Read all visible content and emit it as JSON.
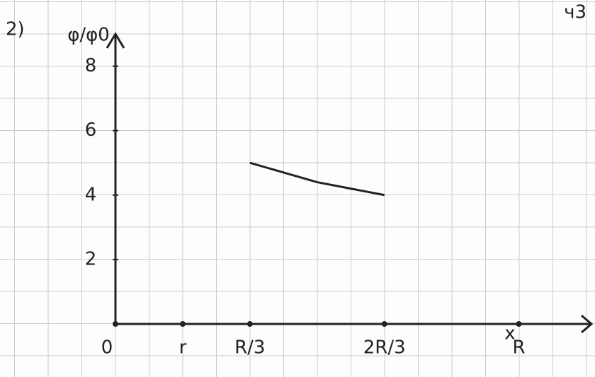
{
  "chart_data": {
    "type": "line",
    "title": "2)",
    "note": "ч3",
    "ylabel": "φ/φ0",
    "xlabel": "x",
    "x": [
      0.3333,
      0.5,
      0.6667
    ],
    "values": [
      5,
      4.4,
      4
    ],
    "color": "#222222",
    "xlim": [
      0,
      1.18
    ],
    "ylim": [
      0,
      9
    ],
    "xticks": [
      0,
      {
        "value": 0.1667,
        "label": "r"
      },
      {
        "value": 0.3333,
        "label": "R/3"
      },
      {
        "value": 0.6667,
        "label": "2R/3"
      },
      {
        "value": 1,
        "label": "R"
      }
    ],
    "yticks": [
      2,
      4,
      6,
      8
    ]
  }
}
